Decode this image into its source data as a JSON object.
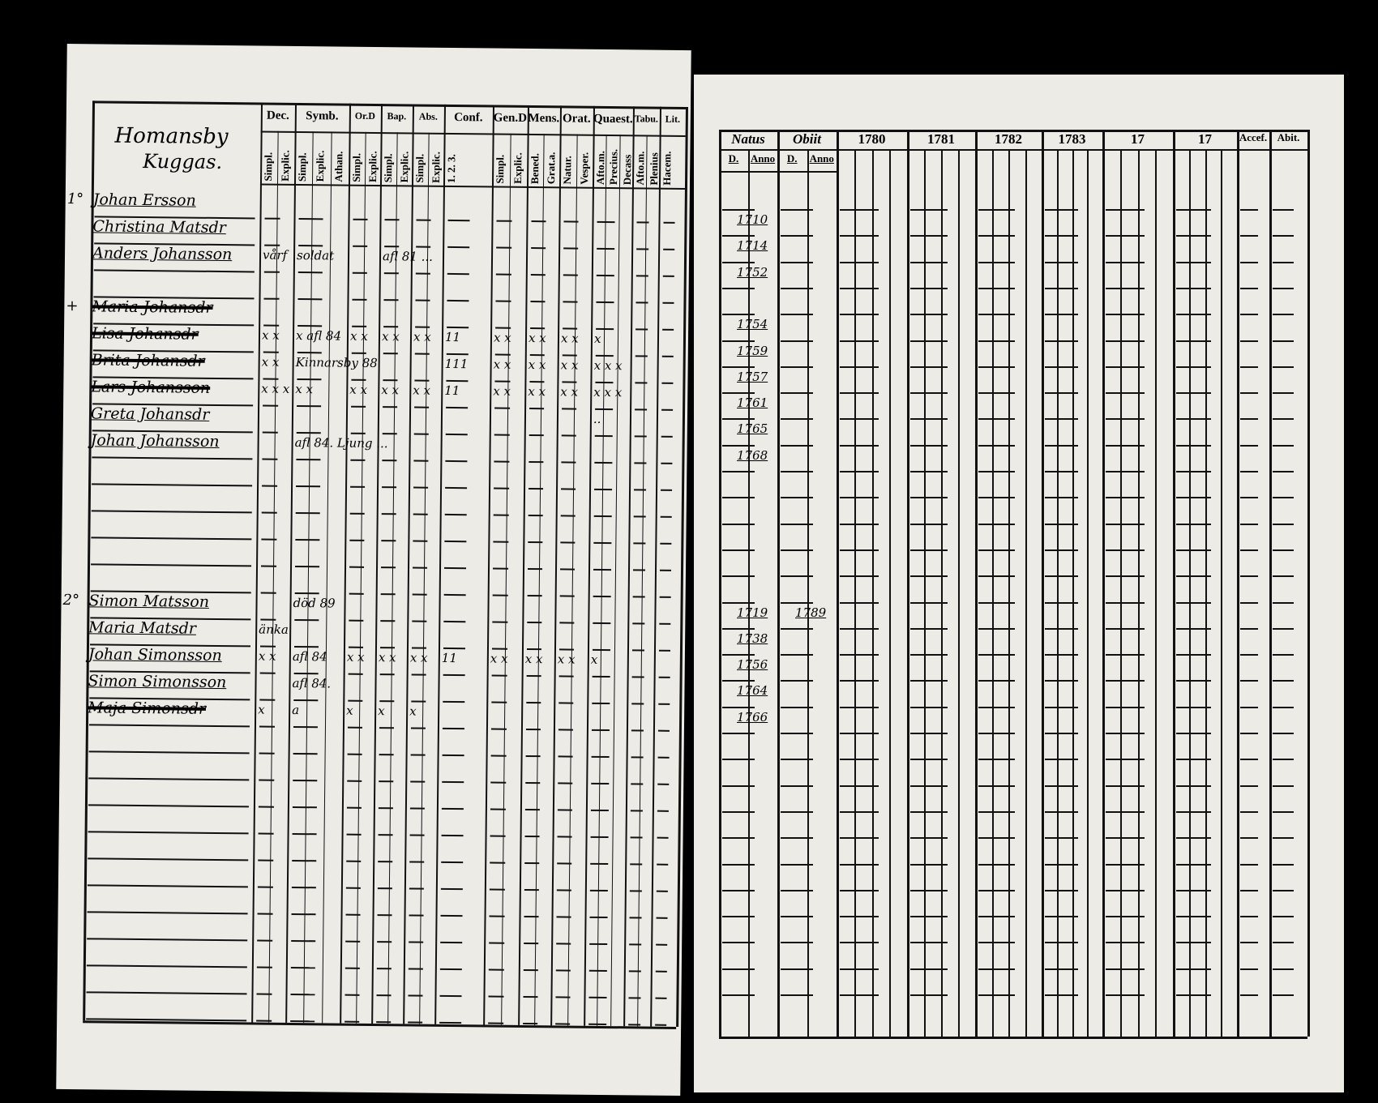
{
  "left_page": {
    "heading": [
      "Homansby",
      "Kuggas."
    ],
    "groups": [
      {
        "label": "Dec.",
        "subs": [
          "Simpl.",
          "Explic."
        ]
      },
      {
        "label": "Symb.",
        "subs": [
          "Simpl.",
          "Explic.",
          "Athan."
        ]
      },
      {
        "label": "Or.D",
        "subs": [
          "Simpl.",
          "Explic."
        ]
      },
      {
        "label": "Bap.",
        "subs": [
          "Simpl.",
          "Explic."
        ]
      },
      {
        "label": "Abs.",
        "subs": [
          "Simpl.",
          "Explic."
        ]
      },
      {
        "label": "Conf.",
        "subs": [
          "1. 2. 3."
        ]
      },
      {
        "label": "Gen.D",
        "subs": [
          "Simpl.",
          "Explic."
        ]
      },
      {
        "label": "Mens.",
        "subs": [
          "Bened.",
          "Grat.a."
        ]
      },
      {
        "label": "Orat.",
        "subs": [
          "Natur.",
          "Vesper."
        ]
      },
      {
        "label": "Quaest.",
        "subs": [
          "Afto.m.",
          "Precius.",
          "Decass"
        ]
      },
      {
        "label": "Tabu.",
        "subs": [
          "Afto.m.",
          "Plenius"
        ]
      },
      {
        "label": "Lit.",
        "subs": [
          "Hacem."
        ]
      }
    ],
    "rows": [
      {
        "marker": "1°",
        "name": "Johan Ersson",
        "struck": false,
        "marks": []
      },
      {
        "marker": "",
        "name": "Christina Matsdr",
        "struck": false,
        "marks": []
      },
      {
        "marker": "",
        "name": "Anders Johansson",
        "struck": false,
        "marks": [
          {
            "col": 0,
            "text": "vårf"
          },
          {
            "col": 1,
            "text": "soldat"
          },
          {
            "col": 3,
            "text": "afl 81 ..."
          }
        ]
      },
      {
        "marker": "",
        "name": "",
        "struck": false,
        "marks": []
      },
      {
        "marker": "+",
        "name": "Maria Johansdr",
        "struck": true,
        "marks": []
      },
      {
        "marker": "",
        "name": "Lisa Johansdr",
        "struck": true,
        "marks": [
          {
            "col": 0,
            "text": "x x"
          },
          {
            "col": 1,
            "text": "x afl 84"
          },
          {
            "col": 2,
            "text": "x x"
          },
          {
            "col": 3,
            "text": "x x"
          },
          {
            "col": 4,
            "text": "x x"
          },
          {
            "col": 5,
            "text": "11"
          },
          {
            "col": 6,
            "text": "x x"
          },
          {
            "col": 7,
            "text": "x x"
          },
          {
            "col": 8,
            "text": "x x"
          },
          {
            "col": 9,
            "text": "x"
          }
        ]
      },
      {
        "marker": "",
        "name": "Brita Johansdr",
        "struck": true,
        "marks": [
          {
            "col": 0,
            "text": "x x"
          },
          {
            "col": 1,
            "text": "Kinnarsby 88"
          },
          {
            "col": 5,
            "text": "111"
          },
          {
            "col": 6,
            "text": "x x"
          },
          {
            "col": 7,
            "text": "x x"
          },
          {
            "col": 8,
            "text": "x x"
          },
          {
            "col": 9,
            "text": "x x x"
          }
        ]
      },
      {
        "marker": "",
        "name": "Lars Johansson",
        "struck": true,
        "marks": [
          {
            "col": 0,
            "text": "x x x"
          },
          {
            "col": 1,
            "text": "x x"
          },
          {
            "col": 2,
            "text": "x x"
          },
          {
            "col": 3,
            "text": "x x"
          },
          {
            "col": 4,
            "text": "x x"
          },
          {
            "col": 5,
            "text": "11"
          },
          {
            "col": 6,
            "text": "x x"
          },
          {
            "col": 7,
            "text": "x x"
          },
          {
            "col": 8,
            "text": "x x"
          },
          {
            "col": 9,
            "text": "x x x"
          }
        ]
      },
      {
        "marker": "",
        "name": "Greta Johansdr",
        "struck": false,
        "marks": [
          {
            "col": 9,
            "text": ".."
          }
        ]
      },
      {
        "marker": "",
        "name": "Johan Johansson",
        "struck": false,
        "marks": [
          {
            "col": 1,
            "text": "afl 84. Ljung ..."
          }
        ]
      },
      {
        "marker": "",
        "name": "",
        "struck": false,
        "marks": []
      },
      {
        "marker": "",
        "name": "",
        "struck": false,
        "marks": []
      },
      {
        "marker": "",
        "name": "",
        "struck": false,
        "marks": []
      },
      {
        "marker": "",
        "name": "",
        "struck": false,
        "marks": []
      },
      {
        "marker": "",
        "name": "",
        "struck": false,
        "marks": []
      },
      {
        "marker": "2°",
        "name": "Simon Matsson",
        "struck": false,
        "marks": [
          {
            "col": 1,
            "text": "död 89"
          }
        ]
      },
      {
        "marker": "",
        "name": "Maria Matsdr",
        "struck": false,
        "marks": [
          {
            "col": 0,
            "text": "änka"
          }
        ]
      },
      {
        "marker": "",
        "name": "Johan Simonsson",
        "struck": false,
        "marks": [
          {
            "col": 0,
            "text": "x x"
          },
          {
            "col": 1,
            "text": "afl 84"
          },
          {
            "col": 2,
            "text": "x x"
          },
          {
            "col": 3,
            "text": "x x"
          },
          {
            "col": 4,
            "text": "x x"
          },
          {
            "col": 5,
            "text": "11"
          },
          {
            "col": 6,
            "text": "x x"
          },
          {
            "col": 7,
            "text": "x x"
          },
          {
            "col": 8,
            "text": "x x"
          },
          {
            "col": 9,
            "text": "x"
          }
        ]
      },
      {
        "marker": "",
        "name": "Simon Simonsson",
        "struck": false,
        "marks": [
          {
            "col": 1,
            "text": "afl 84."
          }
        ]
      },
      {
        "marker": "",
        "name": "Maja Simonsdr",
        "struck": true,
        "marks": [
          {
            "col": 0,
            "text": "x"
          },
          {
            "col": 1,
            "text": "a"
          },
          {
            "col": 2,
            "text": "x"
          },
          {
            "col": 3,
            "text": "x"
          },
          {
            "col": 4,
            "text": "x"
          }
        ]
      }
    ]
  },
  "right_page": {
    "groups": [
      {
        "label": "Natus",
        "subs": [
          "D.",
          "Anno"
        ]
      },
      {
        "label": "Obiit",
        "subs": [
          "D.",
          "Anno"
        ]
      },
      {
        "label": "1780",
        "subs": [
          "",
          "",
          "",
          ""
        ]
      },
      {
        "label": "1781",
        "subs": [
          "",
          "",
          "",
          ""
        ]
      },
      {
        "label": "1782",
        "subs": [
          "",
          "",
          "",
          ""
        ]
      },
      {
        "label": "1783",
        "subs": [
          "",
          "",
          "",
          ""
        ]
      },
      {
        "label": "17",
        "subs": [
          "",
          "",
          "",
          ""
        ]
      },
      {
        "label": "17",
        "subs": [
          "",
          "",
          "",
          ""
        ]
      },
      {
        "label": "Accef.",
        "subs": [
          ""
        ]
      },
      {
        "label": "Abit.",
        "subs": [
          ""
        ]
      }
    ],
    "rows": [
      {
        "natus": "1710",
        "obiit": ""
      },
      {
        "natus": "1714",
        "obiit": ""
      },
      {
        "natus": "1752",
        "obiit": ""
      },
      {
        "natus": "",
        "obiit": ""
      },
      {
        "natus": "1754",
        "obiit": ""
      },
      {
        "natus": "1759",
        "obiit": ""
      },
      {
        "natus": "1757",
        "obiit": ""
      },
      {
        "natus": "1761",
        "obiit": ""
      },
      {
        "natus": "1765",
        "obiit": ""
      },
      {
        "natus": "1768",
        "obiit": ""
      },
      {
        "natus": "",
        "obiit": ""
      },
      {
        "natus": "",
        "obiit": ""
      },
      {
        "natus": "",
        "obiit": ""
      },
      {
        "natus": "",
        "obiit": ""
      },
      {
        "natus": "",
        "obiit": ""
      },
      {
        "natus": "1719",
        "obiit": "1789"
      },
      {
        "natus": "1738",
        "obiit": ""
      },
      {
        "natus": "1756",
        "obiit": ""
      },
      {
        "natus": "1764",
        "obiit": ""
      },
      {
        "natus": "1766",
        "obiit": ""
      }
    ]
  }
}
